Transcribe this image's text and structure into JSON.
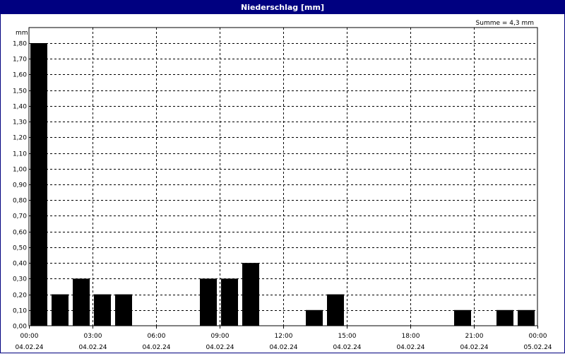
{
  "window": {
    "title": "Niederschlag [mm]"
  },
  "chart_data": {
    "type": "bar",
    "title": "Niederschlag [mm]",
    "ylabel": "mm",
    "annotation": "Summe = 4,3 mm",
    "ylim": [
      0,
      1.8
    ],
    "xlim": [
      "04.02.24 00:00",
      "05.02.24 00:00"
    ],
    "grid": true,
    "y_ticks": [
      "0,00",
      "0,10",
      "0,20",
      "0,30",
      "0,40",
      "0,50",
      "0,60",
      "0,70",
      "0,80",
      "0,90",
      "1,00",
      "1,10",
      "1,20",
      "1,30",
      "1,40",
      "1,50",
      "1,60",
      "1,70",
      "1,80"
    ],
    "x_ticks": [
      {
        "time": "00:00",
        "date": "04.02.24"
      },
      {
        "time": "03:00",
        "date": "04.02.24"
      },
      {
        "time": "06:00",
        "date": "04.02.24"
      },
      {
        "time": "09:00",
        "date": "04.02.24"
      },
      {
        "time": "12:00",
        "date": "04.02.24"
      },
      {
        "time": "15:00",
        "date": "04.02.24"
      },
      {
        "time": "18:00",
        "date": "04.02.24"
      },
      {
        "time": "21:00",
        "date": "04.02.24"
      },
      {
        "time": "00:00",
        "date": "05.02.24"
      }
    ],
    "categories": [
      "00:00",
      "01:00",
      "02:00",
      "03:00",
      "04:00",
      "05:00",
      "06:00",
      "07:00",
      "08:00",
      "09:00",
      "10:00",
      "11:00",
      "12:00",
      "13:00",
      "14:00",
      "15:00",
      "16:00",
      "17:00",
      "18:00",
      "19:00",
      "20:00",
      "21:00",
      "22:00",
      "23:00"
    ],
    "values": [
      1.8,
      0.2,
      0.3,
      0.2,
      0.2,
      0,
      0,
      0,
      0.3,
      0.3,
      0.4,
      0,
      0,
      0.1,
      0.2,
      0,
      0,
      0,
      0,
      0,
      0.1,
      0,
      0.1,
      0.1
    ],
    "bar_color": "#000000",
    "grid_color": "#000000",
    "title_bar_color": "#000080"
  }
}
